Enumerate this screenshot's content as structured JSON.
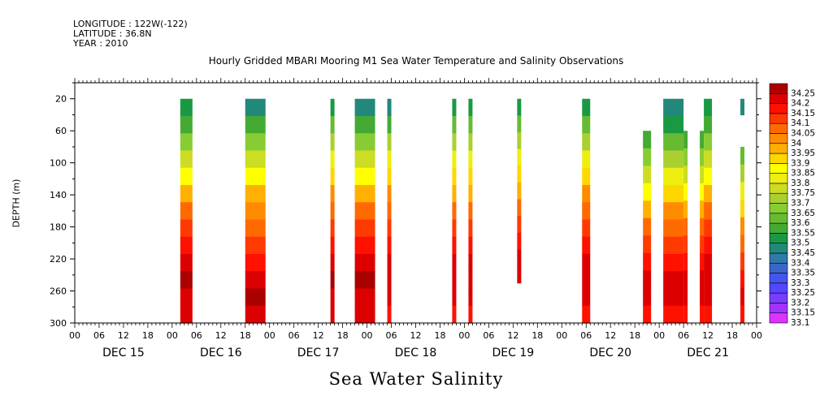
{
  "header": {
    "longitude": "LONGITUDE : 122W(-122)",
    "latitude": "LATITUDE : 36.8N",
    "year": "YEAR : 2010"
  },
  "chart_data": {
    "type": "heatmap",
    "title": "Hourly Gridded MBARI Mooring M1 Sea Water Temperature and Salinity Observations",
    "xlabel": "Sea Water Salinity",
    "ylabel": "DEPTH (m)",
    "x_unit": "hours since Dec 15 00:00",
    "xlim": [
      0,
      168
    ],
    "ylim": [
      300,
      0
    ],
    "yticks": [
      20,
      60,
      100,
      140,
      180,
      220,
      260,
      300
    ],
    "xtick_hours": [
      "00",
      "06",
      "12",
      "18",
      "00",
      "06",
      "12",
      "18",
      "00",
      "06",
      "12",
      "18",
      "00",
      "06",
      "12",
      "18",
      "00",
      "06",
      "12",
      "18",
      "00",
      "06",
      "12",
      "18",
      "00",
      "06",
      "12",
      "18",
      "00"
    ],
    "day_labels": [
      "DEC 15",
      "DEC 16",
      "DEC 17",
      "DEC 18",
      "DEC 19",
      "DEC 20",
      "DEC 21"
    ],
    "colorbar": {
      "levels": [
        33.1,
        33.15,
        33.2,
        33.25,
        33.3,
        33.35,
        33.4,
        33.45,
        33.5,
        33.55,
        33.6,
        33.65,
        33.7,
        33.75,
        33.8,
        33.85,
        33.9,
        33.95,
        34,
        34.05,
        34.1,
        34.15,
        34.2,
        34.25
      ],
      "labels": [
        "33.1",
        "33.15",
        "33.2",
        "33.25",
        "33.3",
        "33.35",
        "33.4",
        "33.45",
        "33.5",
        "33.55",
        "33.6",
        "33.65",
        "33.7",
        "33.75",
        "33.8",
        "33.85",
        "33.9",
        "33.95",
        "34",
        "34.05",
        "34.1",
        "34.15",
        "34.2",
        "34.25"
      ],
      "colors": [
        "#dd33ff",
        "#a033ff",
        "#7a3cff",
        "#5546ff",
        "#4455ee",
        "#3a66cc",
        "#2e7aa8",
        "#22887a",
        "#1a9944",
        "#44aa33",
        "#66bb33",
        "#88cc33",
        "#aad030",
        "#ccdd22",
        "#eeee11",
        "#ffff00",
        "#ffd700",
        "#ffb000",
        "#ff8c00",
        "#ff6a00",
        "#ff3a00",
        "#ff1100",
        "#dd0000",
        "#aa0000"
      ]
    },
    "segments": [
      {
        "start": 26,
        "end": 29,
        "top": 20,
        "bottom": 300,
        "values": [
          33.5,
          33.55,
          33.65,
          33.75,
          33.85,
          33.95,
          34.05,
          34.1,
          34.15,
          34.2,
          34.25,
          34.2,
          34.2
        ]
      },
      {
        "start": 42,
        "end": 47,
        "top": 20,
        "bottom": 300,
        "values": [
          33.45,
          33.55,
          33.65,
          33.75,
          33.85,
          33.95,
          34.0,
          34.05,
          34.1,
          34.15,
          34.2,
          34.25,
          34.2
        ]
      },
      {
        "start": 63,
        "end": 64,
        "top": 20,
        "bottom": 300,
        "values": [
          33.5,
          33.6,
          33.7,
          33.8,
          33.9,
          34.0,
          34.05,
          34.1,
          34.15,
          34.2,
          34.25,
          34.2,
          34.2
        ]
      },
      {
        "start": 69,
        "end": 74,
        "top": 20,
        "bottom": 300,
        "values": [
          33.45,
          33.55,
          33.65,
          33.75,
          33.85,
          33.95,
          34.05,
          34.1,
          34.15,
          34.2,
          34.25,
          34.2,
          34.2
        ]
      },
      {
        "start": 77,
        "end": 78,
        "top": 20,
        "bottom": 300,
        "values": [
          33.45,
          33.55,
          33.7,
          33.8,
          33.9,
          34.0,
          34.05,
          34.1,
          34.15,
          34.2,
          34.2,
          34.2,
          34.15
        ]
      },
      {
        "start": 93,
        "end": 94,
        "top": 20,
        "bottom": 300,
        "values": [
          33.5,
          33.6,
          33.7,
          33.8,
          33.9,
          33.95,
          34.05,
          34.1,
          34.15,
          34.2,
          34.2,
          34.2,
          34.15
        ]
      },
      {
        "start": 97,
        "end": 98,
        "top": 20,
        "bottom": 300,
        "values": [
          33.5,
          33.6,
          33.7,
          33.8,
          33.9,
          33.95,
          34.05,
          34.1,
          34.15,
          34.2,
          34.2,
          34.2,
          34.15
        ]
      },
      {
        "start": 109,
        "end": 110,
        "top": 20,
        "bottom": 250,
        "values": [
          33.5,
          33.6,
          33.7,
          33.8,
          33.9,
          33.95,
          34.05,
          34.1,
          34.15,
          34.2,
          34.2
        ]
      },
      {
        "start": 125,
        "end": 127,
        "top": 20,
        "bottom": 300,
        "values": [
          33.5,
          33.6,
          33.7,
          33.8,
          33.9,
          34.0,
          34.05,
          34.1,
          34.15,
          34.2,
          34.2,
          34.2,
          34.15
        ]
      },
      {
        "start": 140,
        "end": 142,
        "top": 60,
        "bottom": 300,
        "values": [
          33.55,
          33.65,
          33.75,
          33.85,
          33.95,
          34.05,
          34.1,
          34.15,
          34.2,
          34.2,
          34.15
        ]
      },
      {
        "start": 145,
        "end": 150,
        "top": 20,
        "bottom": 300,
        "values": [
          33.45,
          33.5,
          33.6,
          33.7,
          33.8,
          33.9,
          34.0,
          34.05,
          34.1,
          34.15,
          34.2,
          34.2,
          34.15
        ]
      },
      {
        "start": 150,
        "end": 151,
        "top": 60,
        "bottom": 300,
        "values": [
          33.55,
          33.65,
          33.75,
          33.85,
          33.95,
          34.05,
          34.1,
          34.15,
          34.2,
          34.2,
          34.15
        ]
      },
      {
        "start": 154,
        "end": 155,
        "top": 60,
        "bottom": 300,
        "values": [
          33.55,
          33.65,
          33.75,
          33.85,
          33.95,
          34.05,
          34.1,
          34.15,
          34.2,
          34.2,
          34.15
        ]
      },
      {
        "start": 155,
        "end": 157,
        "top": 20,
        "bottom": 300,
        "values": [
          33.5,
          33.55,
          33.65,
          33.75,
          33.85,
          33.95,
          34.05,
          34.1,
          34.15,
          34.2,
          34.2,
          34.2,
          34.15
        ]
      },
      {
        "start": 164,
        "end": 165,
        "top": 20,
        "bottom": 40,
        "values": [
          33.45
        ]
      },
      {
        "start": 164,
        "end": 165,
        "top": 80,
        "bottom": 300,
        "values": [
          33.6,
          33.7,
          33.8,
          33.9,
          34.0,
          34.05,
          34.1,
          34.15,
          34.2,
          34.15
        ]
      }
    ]
  }
}
